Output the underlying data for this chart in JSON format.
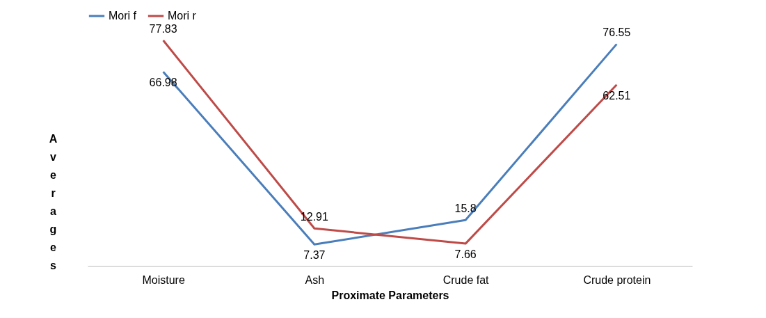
{
  "chart_data": {
    "type": "line",
    "xlabel": "Proximate Parameters",
    "ylabel": "Averages",
    "categories": [
      "Moisture",
      "Ash",
      "Crude fat",
      "Crude protein"
    ],
    "series": [
      {
        "name": "Mori f",
        "color": "#4a7ebb",
        "values": [
          66.98,
          7.37,
          15.8,
          76.55
        ]
      },
      {
        "name": "Mori r",
        "color": "#be4b48",
        "values": [
          77.83,
          12.91,
          7.66,
          62.51
        ]
      }
    ],
    "data_labels": true,
    "legend": "top",
    "grid": false,
    "marker": "none"
  }
}
